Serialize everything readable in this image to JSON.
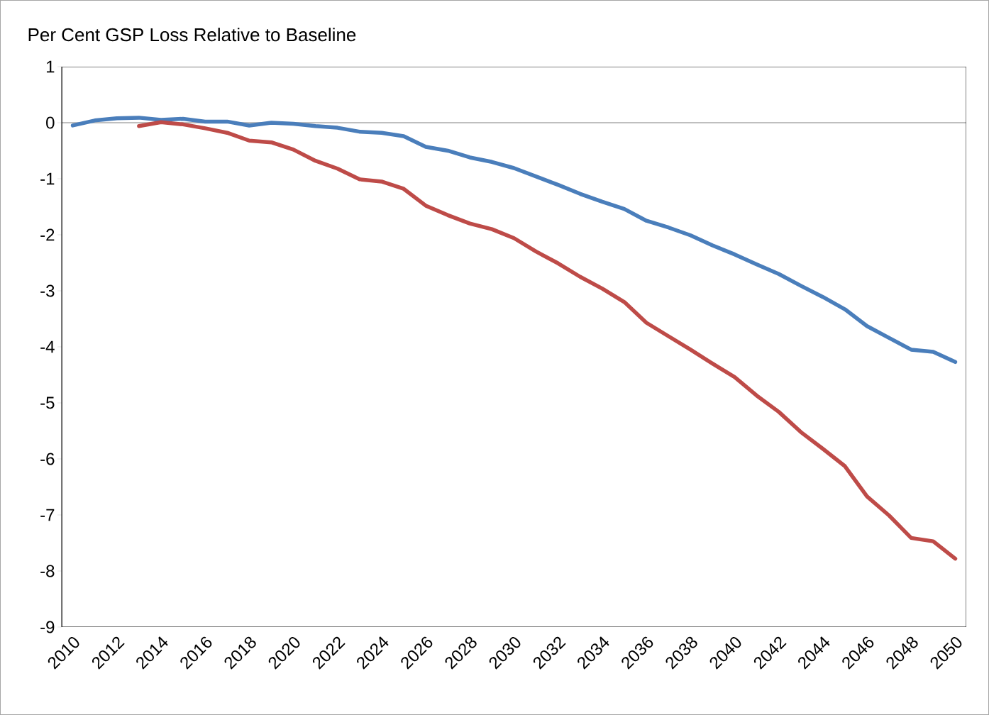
{
  "chart_data": {
    "type": "line",
    "title": "Per Cent GSP Loss Relative to Baseline",
    "categories": [
      "2010",
      null,
      "2012",
      null,
      "2014",
      null,
      "2016",
      null,
      "2018",
      null,
      "2020",
      null,
      "2022",
      null,
      "2024",
      null,
      "2026",
      null,
      "2028",
      null,
      "2030",
      null,
      "2032",
      null,
      "2034",
      null,
      "2036",
      null,
      "2038",
      null,
      "2040",
      null,
      "2042",
      null,
      "2044",
      null,
      "2046",
      null,
      "2048",
      null,
      "2050"
    ],
    "series": [
      {
        "color": "#4a7ebb",
        "values": [
          -0.05,
          0.04,
          0.08,
          0.09,
          0.05,
          0.07,
          0.02,
          0.02,
          -0.05,
          0.0,
          -0.02,
          -0.06,
          -0.09,
          -0.16,
          -0.18,
          -0.24,
          -0.43,
          -0.5,
          -0.62,
          -0.7,
          -0.81,
          -0.96,
          -1.11,
          -1.27,
          -1.41,
          -1.54,
          -1.75,
          -1.87,
          -2.01,
          -2.19,
          -2.35,
          -2.53,
          -2.7,
          -2.91,
          -3.11,
          -3.33,
          -3.63,
          -3.84,
          -4.05,
          -4.09,
          -4.27
        ]
      },
      {
        "color": "#be4b48",
        "values": [
          null,
          null,
          null,
          -0.06,
          0.01,
          -0.03,
          -0.1,
          -0.18,
          -0.32,
          -0.35,
          -0.48,
          -0.68,
          -0.82,
          -1.01,
          -1.05,
          -1.18,
          -1.48,
          -1.65,
          -1.8,
          -1.9,
          -2.06,
          -2.3,
          -2.51,
          -2.75,
          -2.96,
          -3.2,
          -3.57,
          -3.81,
          -4.05,
          -4.3,
          -4.54,
          -4.87,
          -5.16,
          -5.52,
          -5.82,
          -6.13,
          -6.67,
          -7.01,
          -7.41,
          -7.47,
          -7.78
        ]
      }
    ],
    "ylim": [
      -9,
      1
    ],
    "yticks": [
      -9,
      -8,
      -7,
      -6,
      -5,
      -4,
      -3,
      -2,
      -1,
      0,
      1
    ],
    "marker": "none",
    "line_style": "solid"
  }
}
